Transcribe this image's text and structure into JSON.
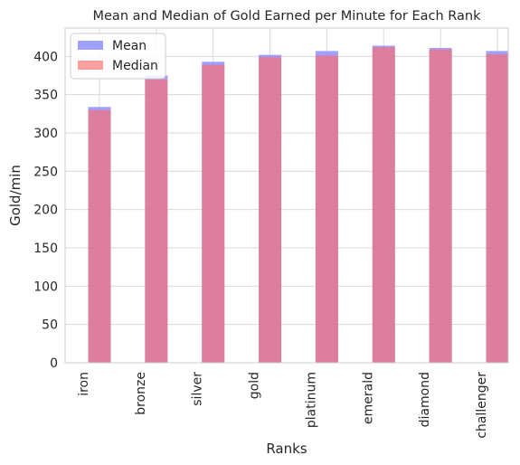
{
  "chart_data": {
    "type": "bar",
    "title": "Mean and Median of Gold Earned per Minute for Each Rank",
    "xlabel": "Ranks",
    "ylabel": "Gold/min",
    "categories": [
      "iron",
      "bronze",
      "silver",
      "gold",
      "platinum",
      "emerald",
      "diamond",
      "challenger"
    ],
    "series": [
      {
        "name": "Mean",
        "values": [
          334,
          375,
          393,
          402,
          407,
          414,
          411,
          407
        ],
        "color": "#8080ff",
        "opacity": 0.75
      },
      {
        "name": "Median",
        "values": [
          330,
          370,
          389,
          399,
          401,
          412,
          409,
          403
        ],
        "color": "#ff6b6b",
        "opacity": 0.65
      }
    ],
    "ylim": [
      0,
      437
    ],
    "yticks": [
      0,
      50,
      100,
      150,
      200,
      250,
      300,
      350,
      400
    ],
    "grid": true,
    "legend_position": "top-left",
    "x_tick_rotation": 90
  }
}
